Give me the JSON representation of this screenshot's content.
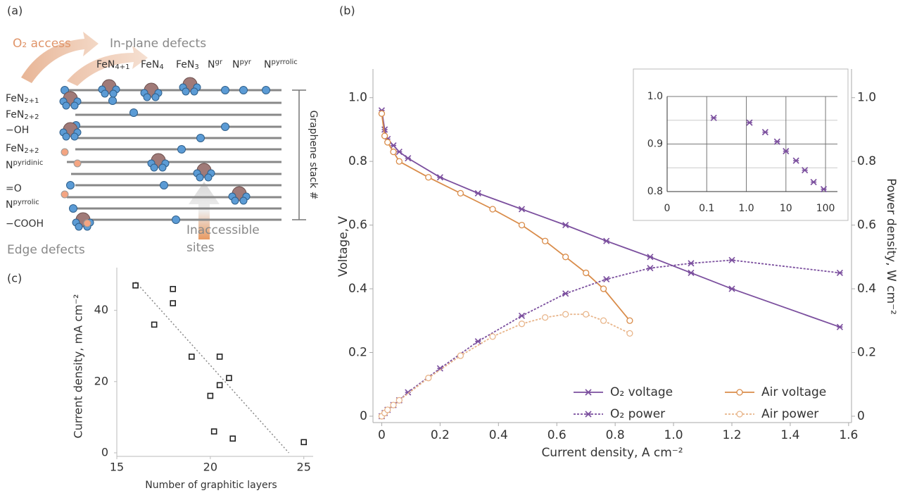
{
  "panel_a": {
    "label": "(a)",
    "o2_access": "O₂ access",
    "in_plane": "In-plane defects",
    "top_labels": [
      {
        "base": "FeN",
        "sub": "4+1"
      },
      {
        "base": "FeN",
        "sub": "4"
      },
      {
        "base": "FeN",
        "sub": "3"
      },
      {
        "base": "N",
        "sup": "gr"
      },
      {
        "base": "N",
        "sup": "pyr"
      },
      {
        "base": "N",
        "sup": "pyrrolic"
      }
    ],
    "edge_labels": [
      {
        "base": "FeN",
        "sub": "2+1"
      },
      {
        "base": "FeN",
        "sub": "2+2"
      },
      {
        "base": "−OH"
      },
      {
        "base": "FeN",
        "sub": "2+2"
      },
      {
        "base": "N",
        "sup": "pyridinic"
      },
      {
        "base": "=O"
      },
      {
        "base": "N",
        "sup": "pyrrolic"
      },
      {
        "base": "−COOH"
      }
    ],
    "stack": "Graphene stack #",
    "inaccessible": [
      "Inaccessible",
      "sites"
    ],
    "edge_defects": "Edge defects"
  },
  "chart_data": [
    {
      "type": "line",
      "panel_label": "(b)",
      "x_label": "Current density, A cm⁻²",
      "y_label": "Voltage, V",
      "y2_label": "Power density, W cm⁻²",
      "xlim": [
        -0.03,
        1.61
      ],
      "ylim": [
        -0.02,
        1.09
      ],
      "y2lim": [
        -0.02,
        1.09
      ],
      "xticks": [
        0,
        0.2,
        0.4,
        0.6,
        0.8,
        {
          "value": 1,
          "label": "1.0"
        },
        1.2,
        1.4,
        1.6
      ],
      "yticks": [
        0,
        0.2,
        0.4,
        0.6,
        0.8,
        {
          "value": 1,
          "label": "1.0"
        }
      ],
      "y2ticks": [
        0,
        0.2,
        0.4,
        0.6,
        0.8,
        {
          "value": 1,
          "label": "1.0"
        }
      ],
      "legend": "lower right",
      "series": [
        {
          "name": "O₂ voltage",
          "color": "#7b4f9e",
          "marker": "x",
          "linestyle": "solid",
          "axis": "y",
          "x": [
            0,
            0.01,
            0.02,
            0.04,
            0.06,
            0.09,
            0.2,
            0.33,
            0.48,
            0.63,
            0.77,
            0.92,
            1.06,
            1.2,
            1.57
          ],
          "values": [
            0.96,
            0.9,
            0.87,
            0.85,
            0.83,
            0.81,
            0.75,
            0.7,
            0.65,
            0.6,
            0.55,
            0.5,
            0.45,
            0.4,
            0.28
          ]
        },
        {
          "name": "Air voltage",
          "color": "#d98c4a",
          "marker": "o",
          "linestyle": "solid",
          "axis": "y",
          "x": [
            0,
            0.01,
            0.02,
            0.04,
            0.06,
            0.16,
            0.27,
            0.38,
            0.48,
            0.56,
            0.63,
            0.7,
            0.76,
            0.85
          ],
          "values": [
            0.95,
            0.88,
            0.86,
            0.83,
            0.8,
            0.75,
            0.7,
            0.65,
            0.6,
            0.55,
            0.5,
            0.45,
            0.4,
            0.3
          ]
        },
        {
          "name": "O₂ power",
          "color": "#7b4f9e",
          "marker": "x",
          "linestyle": "dotted",
          "axis": "y2",
          "x": [
            0,
            0.01,
            0.02,
            0.04,
            0.06,
            0.09,
            0.2,
            0.33,
            0.48,
            0.63,
            0.77,
            0.92,
            1.06,
            1.2,
            1.57
          ],
          "values": [
            0,
            0.01,
            0.02,
            0.035,
            0.05,
            0.075,
            0.15,
            0.235,
            0.315,
            0.385,
            0.43,
            0.465,
            0.48,
            0.49,
            0.45
          ]
        },
        {
          "name": "Air power",
          "color": "#e8b58a",
          "marker": "o",
          "linestyle": "dotted",
          "axis": "y2",
          "x": [
            0,
            0.01,
            0.02,
            0.04,
            0.06,
            0.16,
            0.27,
            0.38,
            0.48,
            0.56,
            0.63,
            0.7,
            0.76,
            0.85
          ],
          "values": [
            0,
            0.01,
            0.02,
            0.035,
            0.05,
            0.12,
            0.19,
            0.25,
            0.29,
            0.31,
            0.32,
            0.32,
            0.3,
            0.26
          ]
        }
      ]
    },
    {
      "type": "scatter",
      "xscale": "log",
      "xlim": [
        0.01,
        200
      ],
      "ylim": [
        0.8,
        1.0
      ],
      "xticks": [
        {
          "value": 0.01,
          "label": "0"
        },
        0.1,
        {
          "value": 1,
          "label": "1.0"
        },
        10,
        100
      ],
      "yticks": [
        0.8,
        0.9,
        {
          "value": 1,
          "label": "1.0"
        }
      ],
      "minor_yticks": [
        0.85,
        0.95
      ],
      "color": "#7b4f9e",
      "marker": "x",
      "x": [
        0.15,
        1.2,
        3,
        6,
        10,
        18,
        30,
        50,
        90
      ],
      "values": [
        0.955,
        0.945,
        0.925,
        0.905,
        0.885,
        0.865,
        0.845,
        0.82,
        0.805
      ]
    },
    {
      "type": "scatter",
      "panel_label": "(c)",
      "x_label": "Number of graphitic layers",
      "y_label": "Current density, mA cm⁻²",
      "xlim": [
        15,
        25.5
      ],
      "ylim": [
        -1,
        52
      ],
      "xticks": [
        15,
        20,
        25
      ],
      "yticks": [
        0,
        20,
        40
      ],
      "color": "#222222",
      "marker": "s",
      "x": [
        16,
        17,
        18,
        18,
        19,
        20,
        20.2,
        20.5,
        20.5,
        21,
        21.2,
        25
      ],
      "values": [
        47,
        36,
        46,
        42,
        27,
        16,
        6,
        27,
        19,
        21,
        4,
        3
      ],
      "fit": {
        "x": [
          16,
          24.2
        ],
        "values": [
          48,
          0
        ]
      }
    }
  ]
}
